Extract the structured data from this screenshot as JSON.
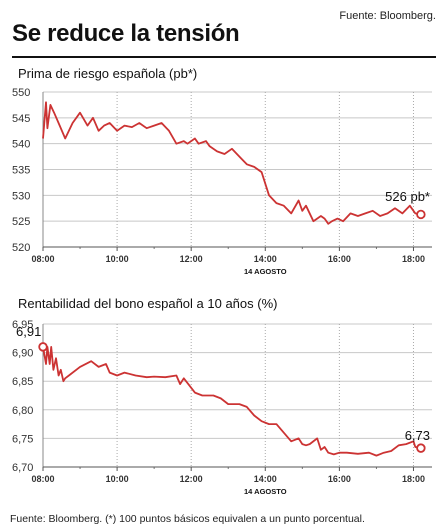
{
  "header": {
    "source": "Fuente: Bloomberg.",
    "title": "Se reduce la tensión"
  },
  "footer": {
    "note": "Fuente: Bloomberg. (*) 100 puntos básicos equivalen a un punto porcentual."
  },
  "colors": {
    "line": "#cc3333",
    "grid": "#c8c8c8",
    "axis": "#888888"
  },
  "chart_data": [
    {
      "type": "line",
      "title": "Prima de riesgo española (pb*)",
      "date_label": "14 AGOSTO",
      "end_label": "526 pb*",
      "ylim": [
        520,
        550
      ],
      "yticks": [
        520,
        525,
        530,
        535,
        540,
        545,
        550
      ],
      "ytick_labels": [
        "520",
        "525",
        "530",
        "535",
        "540",
        "545",
        "550"
      ],
      "xlim": [
        8.0,
        18.5
      ],
      "xticks": [
        8,
        10,
        12,
        14,
        16,
        18
      ],
      "xtick_labels": [
        "08:00",
        "10:00",
        "12:00",
        "14:00",
        "16:00",
        "18:00"
      ],
      "grid": true,
      "end_marker": true,
      "series": [
        {
          "x": [
            8.0,
            8.08,
            8.12,
            8.2,
            8.3,
            8.45,
            8.6,
            8.8,
            9.0,
            9.2,
            9.35,
            9.5,
            9.65,
            9.8,
            10.0,
            10.2,
            10.4,
            10.6,
            10.8,
            11.0,
            11.2,
            11.4,
            11.6,
            11.8,
            11.9,
            12.1,
            12.2,
            12.4,
            12.5,
            12.7,
            12.9,
            13.1,
            13.3,
            13.5,
            13.7,
            13.9,
            14.1,
            14.3,
            14.5,
            14.7,
            14.9,
            15.0,
            15.1,
            15.3,
            15.5,
            15.6,
            15.7,
            15.8,
            15.95,
            16.1,
            16.3,
            16.5,
            16.7,
            16.9,
            17.1,
            17.3,
            17.5,
            17.7,
            17.9,
            18.05,
            18.2
          ],
          "values": [
            541,
            548,
            543,
            547.5,
            546,
            543.5,
            541,
            544,
            546,
            543.5,
            545,
            542.5,
            543.5,
            544,
            542.5,
            543.5,
            543.2,
            544,
            543,
            543.5,
            544,
            542.5,
            540,
            540.5,
            540,
            541,
            540,
            540.5,
            539.5,
            538.5,
            538,
            539,
            537.5,
            536,
            535.5,
            534.5,
            530,
            528.5,
            528,
            526.5,
            529,
            527,
            528,
            525,
            526,
            525.5,
            524.5,
            525,
            525.5,
            525,
            526.5,
            526,
            526.5,
            527,
            526,
            526.5,
            527.5,
            526.5,
            528,
            526.5,
            526.3
          ]
        }
      ]
    },
    {
      "type": "line",
      "title": "Rentabilidad del bono español a 10 años (%)",
      "date_label": "14 AGOSTO",
      "start_label": "6,91",
      "end_label": "6,73",
      "ylim": [
        6.7,
        6.95
      ],
      "yticks": [
        6.7,
        6.75,
        6.8,
        6.85,
        6.9,
        6.95
      ],
      "ytick_labels": [
        "6,70",
        "6,75",
        "6,80",
        "6,85",
        "6,90",
        "6,95"
      ],
      "xlim": [
        8.0,
        18.5
      ],
      "xticks": [
        8,
        10,
        12,
        14,
        16,
        18
      ],
      "xtick_labels": [
        "08:00",
        "10:00",
        "12:00",
        "14:00",
        "16:00",
        "18:00"
      ],
      "grid": true,
      "start_marker": true,
      "end_marker": true,
      "series": [
        {
          "x": [
            8.0,
            8.08,
            8.12,
            8.18,
            8.22,
            8.28,
            8.35,
            8.42,
            8.48,
            8.55,
            8.6,
            8.7,
            9.0,
            9.3,
            9.5,
            9.7,
            9.8,
            10.0,
            10.2,
            10.5,
            10.8,
            11.0,
            11.3,
            11.6,
            11.7,
            11.8,
            12.1,
            12.3,
            12.6,
            12.8,
            13.0,
            13.3,
            13.5,
            13.7,
            13.9,
            14.1,
            14.3,
            14.5,
            14.7,
            14.9,
            15.0,
            15.1,
            15.2,
            15.4,
            15.5,
            15.6,
            15.7,
            15.85,
            16.0,
            16.2,
            16.5,
            16.8,
            17.0,
            17.2,
            17.4,
            17.6,
            17.8,
            18.0,
            18.05,
            18.2
          ],
          "values": [
            6.91,
            6.88,
            6.91,
            6.88,
            6.91,
            6.87,
            6.89,
            6.86,
            6.87,
            6.85,
            6.855,
            6.86,
            6.875,
            6.885,
            6.875,
            6.88,
            6.865,
            6.86,
            6.865,
            6.86,
            6.857,
            6.858,
            6.857,
            6.86,
            6.845,
            6.855,
            6.83,
            6.825,
            6.825,
            6.82,
            6.81,
            6.81,
            6.805,
            6.79,
            6.78,
            6.775,
            6.775,
            6.76,
            6.745,
            6.75,
            6.74,
            6.738,
            6.74,
            6.75,
            6.73,
            6.735,
            6.725,
            6.722,
            6.725,
            6.725,
            6.723,
            6.725,
            6.72,
            6.725,
            6.728,
            6.738,
            6.74,
            6.745,
            6.735,
            6.733
          ]
        }
      ]
    }
  ]
}
